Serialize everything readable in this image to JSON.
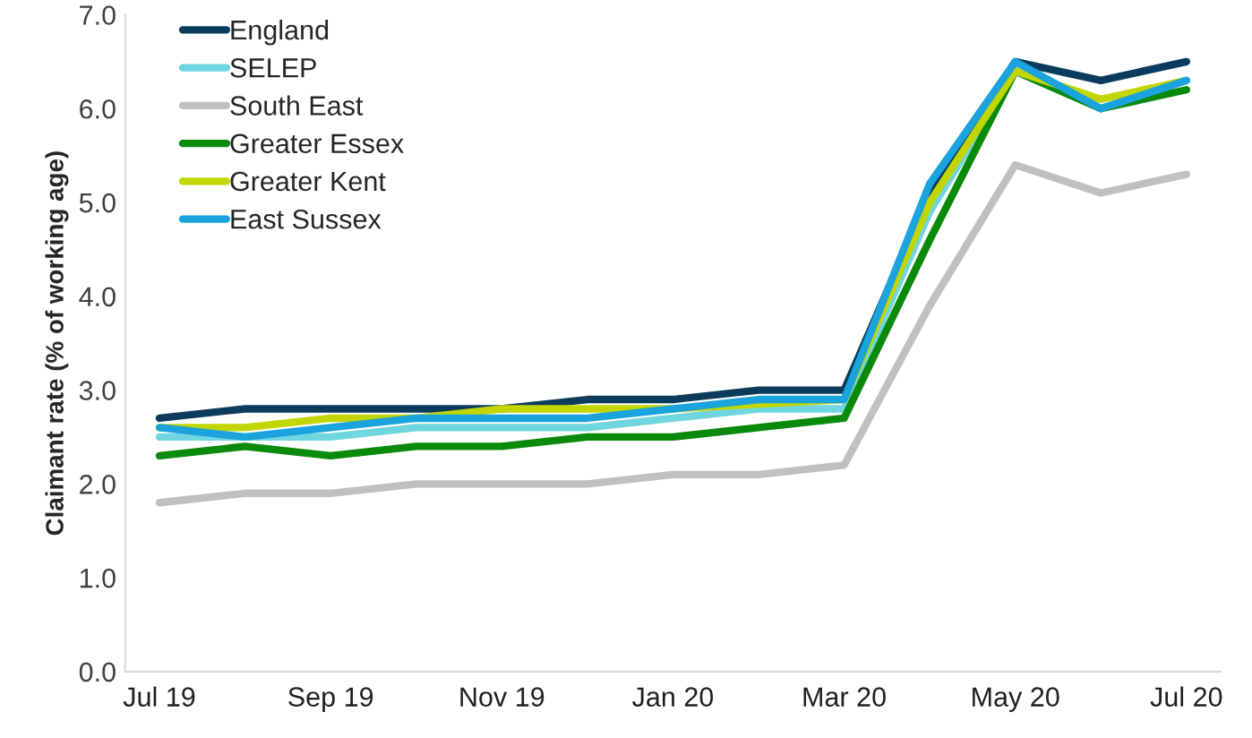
{
  "chart_data": {
    "type": "line",
    "ylabel": "Claimant rate (% of working age)",
    "categories": [
      "Jul 19",
      null,
      "Sep 19",
      null,
      "Nov 19",
      null,
      "Jan 20",
      null,
      "Mar 20",
      null,
      "May 20",
      null,
      "Jul 20"
    ],
    "series": [
      {
        "name": "England",
        "color": "#0b3c5d",
        "values": [
          2.7,
          2.8,
          2.8,
          2.8,
          2.8,
          2.9,
          2.9,
          3.0,
          3.0,
          5.1,
          6.5,
          6.3,
          6.5
        ]
      },
      {
        "name": "SELEP",
        "color": "#6fd6e0",
        "values": [
          2.5,
          2.5,
          2.5,
          2.6,
          2.6,
          2.6,
          2.7,
          2.8,
          2.8,
          4.9,
          6.4,
          6.0,
          6.3
        ]
      },
      {
        "name": "South East",
        "color": "#c0c0c0",
        "values": [
          1.8,
          1.9,
          1.9,
          2.0,
          2.0,
          2.0,
          2.1,
          2.1,
          2.2,
          3.9,
          5.4,
          5.1,
          5.3
        ]
      },
      {
        "name": "Greater Essex",
        "color": "#0a8a0a",
        "values": [
          2.3,
          2.4,
          2.3,
          2.4,
          2.4,
          2.5,
          2.5,
          2.6,
          2.7,
          4.6,
          6.4,
          6.0,
          6.2
        ]
      },
      {
        "name": "Greater Kent",
        "color": "#c4d600",
        "values": [
          2.6,
          2.6,
          2.7,
          2.7,
          2.8,
          2.8,
          2.8,
          null,
          2.9,
          5.0,
          6.4,
          6.1,
          6.3
        ]
      },
      {
        "name": "East Sussex",
        "color": "#1aa3dc",
        "values": [
          2.6,
          2.5,
          2.6,
          2.7,
          2.7,
          2.7,
          2.8,
          2.9,
          2.9,
          5.2,
          6.5,
          6.0,
          6.3
        ]
      }
    ],
    "ylim": [
      0,
      7
    ],
    "yticks": [
      {
        "value": 0,
        "label": "0.0"
      },
      {
        "value": 1,
        "label": "1.0"
      },
      {
        "value": 2,
        "label": "2.0"
      },
      {
        "value": 3,
        "label": "3.0"
      },
      {
        "value": 4,
        "label": "4.0"
      },
      {
        "value": 5,
        "label": "5.0"
      },
      {
        "value": 6,
        "label": "6.0"
      },
      {
        "value": 7,
        "label": "7.0"
      }
    ],
    "grid": false,
    "legend": "top left",
    "marker": "none",
    "line_style": "solid"
  }
}
